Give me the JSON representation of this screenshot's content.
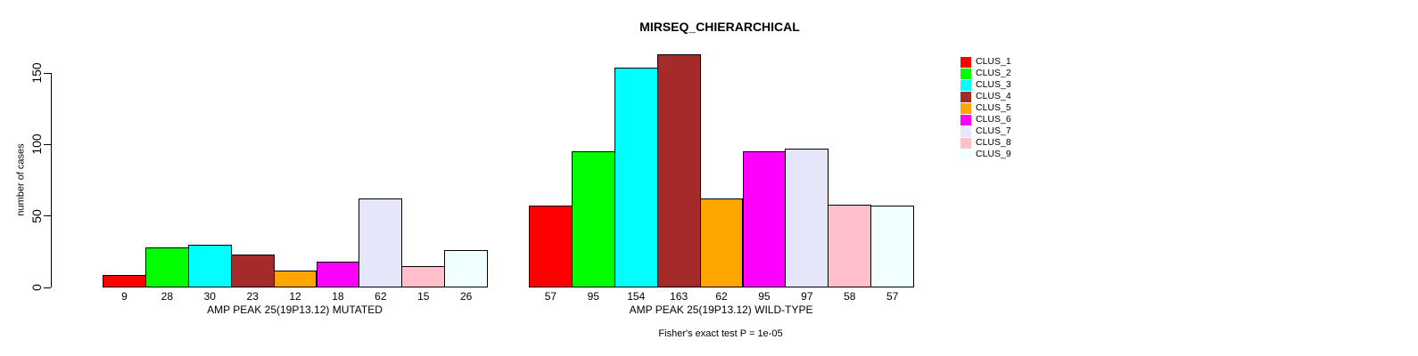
{
  "title": "MIRSEQ_CHIERARCHICAL",
  "y_axis": {
    "label": "number of cases"
  },
  "footer": "Fisher's exact test P = 1e-05",
  "chart_data": {
    "type": "bar",
    "title": "MIRSEQ_CHIERARCHICAL",
    "xlabel": "",
    "ylabel": "number of cases",
    "ylim": [
      0,
      170
    ],
    "yticks": [
      0,
      50,
      100,
      150
    ],
    "grid": false,
    "legend_position": "right",
    "categories": [
      "CLUS_1",
      "CLUS_2",
      "CLUS_3",
      "CLUS_4",
      "CLUS_5",
      "CLUS_6",
      "CLUS_7",
      "CLUS_8",
      "CLUS_9"
    ],
    "colors": [
      "#FF0000",
      "#00FF00",
      "#00FFFF",
      "#A52A2A",
      "#FFA500",
      "#FF00FF",
      "#E6E6FA",
      "#FFC0CB",
      "#F0FFFF"
    ],
    "series": [
      {
        "name": "AMP PEAK 25(19P13.12) MUTATED",
        "values": [
          9,
          28,
          30,
          23,
          12,
          18,
          62,
          15,
          26
        ]
      },
      {
        "name": "AMP PEAK 25(19P13.12) WILD-TYPE",
        "values": [
          57,
          95,
          154,
          163,
          62,
          95,
          97,
          58,
          57
        ]
      }
    ],
    "annotation": "Fisher's exact test P = 1e-05"
  }
}
